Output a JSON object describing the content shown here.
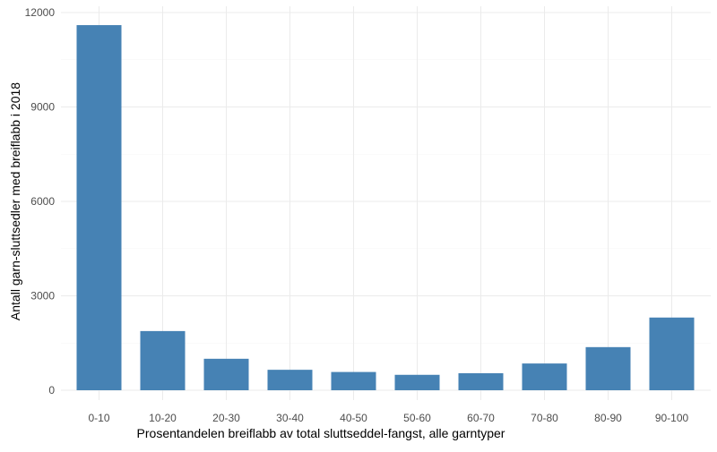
{
  "chart_data": {
    "type": "bar",
    "title": "",
    "xlabel": "Prosentandelen breiflabb av total sluttseddel-fangst, alle garntyper",
    "ylabel": "Antall garn-sluttsedler med breiflabb i 2018",
    "categories": [
      "0-10",
      "10-20",
      "20-30",
      "30-40",
      "40-50",
      "50-60",
      "60-70",
      "70-80",
      "80-90",
      "90-100"
    ],
    "values": [
      11600,
      1880,
      1000,
      650,
      580,
      490,
      540,
      850,
      1370,
      2310
    ],
    "yticks": [
      0,
      3000,
      6000,
      9000,
      12000
    ],
    "ytick_labels": [
      "0",
      "3000",
      "6000",
      "9000",
      "12000"
    ],
    "ylim": [
      0,
      12000
    ],
    "grid": true,
    "bar_color": "#4682b4"
  }
}
